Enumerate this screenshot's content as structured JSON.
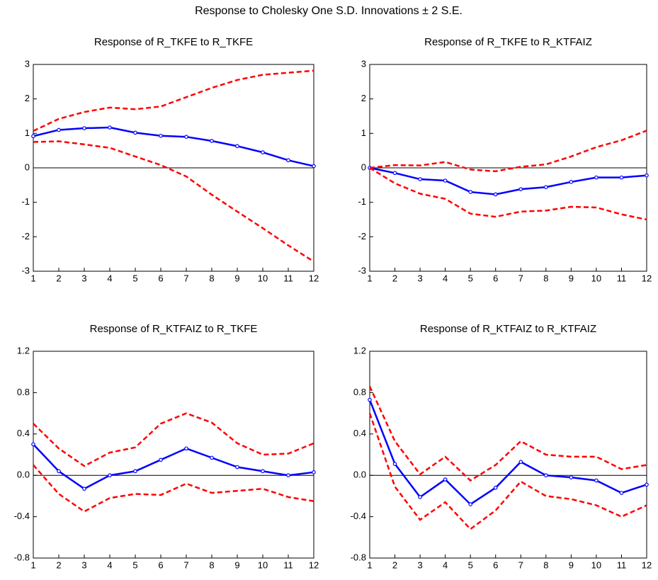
{
  "title": "Response to Cholesky One S.D. Innovations ± 2 S.E.",
  "chart_data": [
    {
      "type": "line",
      "title": "Response of R_TKFE to R_TKFE",
      "x": [
        1,
        2,
        3,
        4,
        5,
        6,
        7,
        8,
        9,
        10,
        11,
        12
      ],
      "xlim": [
        1,
        12
      ],
      "xticks": [
        1,
        2,
        3,
        4,
        5,
        6,
        7,
        8,
        9,
        10,
        11,
        12
      ],
      "ylim": [
        -3,
        3
      ],
      "yticks": [
        -3,
        -2,
        -1,
        0,
        1,
        2,
        3
      ],
      "zero_line": true,
      "series": [
        {
          "color": "#0000ff",
          "markers": true,
          "dashed": false,
          "values": [
            0.92,
            1.1,
            1.15,
            1.17,
            1.02,
            0.93,
            0.9,
            0.78,
            0.63,
            0.45,
            0.22,
            0.05
          ]
        },
        {
          "color": "#ff0000",
          "markers": false,
          "dashed": true,
          "values": [
            1.07,
            1.42,
            1.62,
            1.75,
            1.7,
            1.78,
            2.05,
            2.32,
            2.55,
            2.7,
            2.76,
            2.82
          ]
        },
        {
          "color": "#ff0000",
          "markers": false,
          "dashed": true,
          "values": [
            0.75,
            0.77,
            0.68,
            0.58,
            0.33,
            0.08,
            -0.25,
            -0.78,
            -1.27,
            -1.75,
            -2.25,
            -2.72
          ]
        }
      ]
    },
    {
      "type": "line",
      "title": "Response of R_TKFE to R_KTFAIZ",
      "x": [
        1,
        2,
        3,
        4,
        5,
        6,
        7,
        8,
        9,
        10,
        11,
        12
      ],
      "xlim": [
        1,
        12
      ],
      "xticks": [
        1,
        2,
        3,
        4,
        5,
        6,
        7,
        8,
        9,
        10,
        11,
        12
      ],
      "ylim": [
        -3,
        3
      ],
      "yticks": [
        -3,
        -2,
        -1,
        0,
        1,
        2,
        3
      ],
      "zero_line": true,
      "series": [
        {
          "color": "#0000ff",
          "markers": true,
          "dashed": false,
          "values": [
            0,
            -0.15,
            -0.33,
            -0.37,
            -0.7,
            -0.77,
            -0.62,
            -0.56,
            -0.41,
            -0.28,
            -0.28,
            -0.22
          ]
        },
        {
          "color": "#ff0000",
          "markers": false,
          "dashed": true,
          "values": [
            0,
            0.08,
            0.07,
            0.17,
            -0.05,
            -0.1,
            0.03,
            0.1,
            0.33,
            0.6,
            0.8,
            1.08
          ]
        },
        {
          "color": "#ff0000",
          "markers": false,
          "dashed": true,
          "values": [
            0,
            -0.45,
            -0.75,
            -0.9,
            -1.33,
            -1.42,
            -1.27,
            -1.24,
            -1.13,
            -1.15,
            -1.35,
            -1.5
          ]
        }
      ]
    },
    {
      "type": "line",
      "title": "Response of R_KTFAIZ to R_TKFE",
      "x": [
        1,
        2,
        3,
        4,
        5,
        6,
        7,
        8,
        9,
        10,
        11,
        12
      ],
      "xlim": [
        1,
        12
      ],
      "xticks": [
        1,
        2,
        3,
        4,
        5,
        6,
        7,
        8,
        9,
        10,
        11,
        12
      ],
      "ylim": [
        -0.8,
        1.2
      ],
      "yticks": [
        -0.8,
        -0.4,
        {
          "value": 0,
          "label": "0.0"
        },
        0.4,
        0.8,
        1.2
      ],
      "zero_line": true,
      "series": [
        {
          "color": "#0000ff",
          "markers": true,
          "dashed": false,
          "values": [
            0.3,
            0.04,
            -0.13,
            0.0,
            0.04,
            0.15,
            0.26,
            0.17,
            0.08,
            0.04,
            0.0,
            0.03
          ]
        },
        {
          "color": "#ff0000",
          "markers": false,
          "dashed": true,
          "values": [
            0.5,
            0.26,
            0.09,
            0.22,
            0.27,
            0.5,
            0.6,
            0.51,
            0.31,
            0.2,
            0.21,
            0.31
          ]
        },
        {
          "color": "#ff0000",
          "markers": false,
          "dashed": true,
          "values": [
            0.1,
            -0.18,
            -0.35,
            -0.22,
            -0.18,
            -0.19,
            -0.08,
            -0.17,
            -0.15,
            -0.13,
            -0.21,
            -0.25
          ]
        }
      ]
    },
    {
      "type": "line",
      "title": "Response of R_KTFAIZ to R_KTFAIZ",
      "x": [
        1,
        2,
        3,
        4,
        5,
        6,
        7,
        8,
        9,
        10,
        11,
        12
      ],
      "xlim": [
        1,
        12
      ],
      "xticks": [
        1,
        2,
        3,
        4,
        5,
        6,
        7,
        8,
        9,
        10,
        11,
        12
      ],
      "ylim": [
        -0.8,
        1.2
      ],
      "yticks": [
        -0.8,
        -0.4,
        {
          "value": 0,
          "label": "0.0"
        },
        0.4,
        0.8,
        1.2
      ],
      "zero_line": true,
      "series": [
        {
          "color": "#0000ff",
          "markers": true,
          "dashed": false,
          "values": [
            0.73,
            0.11,
            -0.21,
            -0.04,
            -0.28,
            -0.12,
            0.13,
            0.0,
            -0.02,
            -0.05,
            -0.17,
            -0.09
          ]
        },
        {
          "color": "#ff0000",
          "markers": false,
          "dashed": true,
          "values": [
            0.86,
            0.33,
            0.01,
            0.18,
            -0.05,
            0.1,
            0.33,
            0.2,
            0.18,
            0.18,
            0.06,
            0.1
          ]
        },
        {
          "color": "#ff0000",
          "markers": false,
          "dashed": true,
          "values": [
            0.6,
            -0.11,
            -0.43,
            -0.26,
            -0.52,
            -0.34,
            -0.06,
            -0.2,
            -0.23,
            -0.29,
            -0.4,
            -0.29
          ]
        }
      ]
    }
  ]
}
